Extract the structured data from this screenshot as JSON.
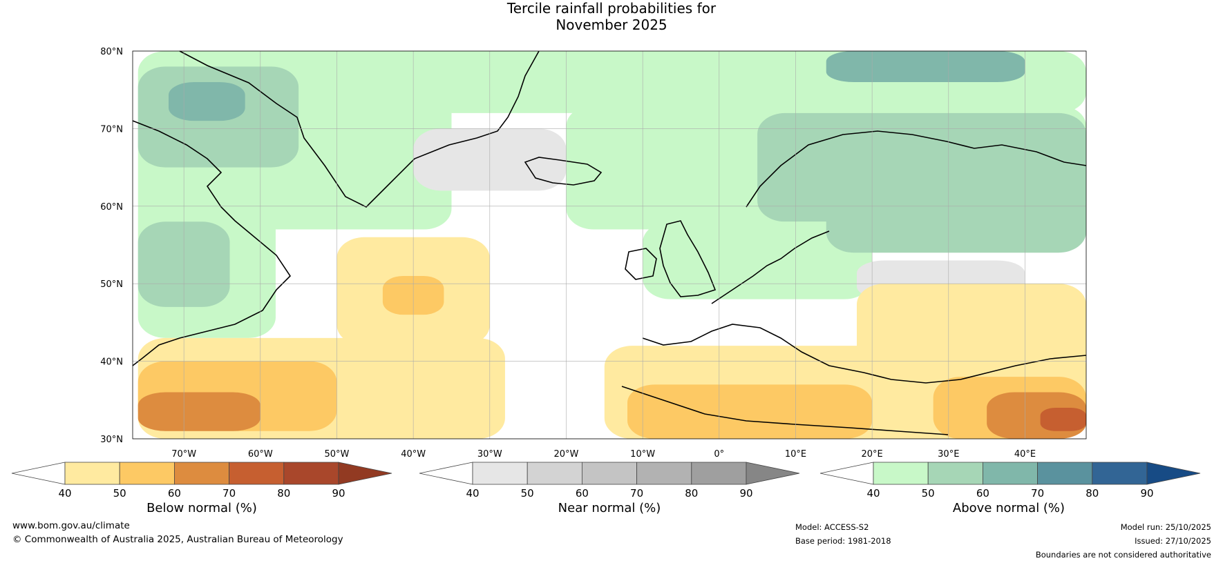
{
  "title": {
    "line1": "Tercile rainfall probabilities for",
    "line2": "November 2025"
  },
  "map": {
    "lat_ticks": [
      "80°N",
      "70°N",
      "60°N",
      "50°N",
      "40°N",
      "30°N"
    ],
    "lon_ticks": [
      "70°W",
      "60°W",
      "50°W",
      "40°W",
      "30°W",
      "20°W",
      "10°W",
      "0°",
      "10°E",
      "20°E",
      "30°E",
      "40°E"
    ],
    "lat_range": [
      30,
      80
    ],
    "lon_range": [
      -76.7,
      48.0
    ],
    "regions": [
      {
        "cat": "above",
        "level": 0,
        "lon": [
          -76,
          -35
        ],
        "lat": [
          57,
          80
        ]
      },
      {
        "cat": "above",
        "level": 1,
        "lon": [
          -76,
          -55
        ],
        "lat": [
          65,
          78
        ]
      },
      {
        "cat": "above",
        "level": 2,
        "lon": [
          -72,
          -62
        ],
        "lat": [
          71,
          76
        ]
      },
      {
        "cat": "above",
        "level": 0,
        "lon": [
          -76,
          -58
        ],
        "lat": [
          43,
          62
        ]
      },
      {
        "cat": "above",
        "level": 1,
        "lon": [
          -76,
          -64
        ],
        "lat": [
          47,
          58
        ]
      },
      {
        "cat": "above",
        "level": 0,
        "lon": [
          -45,
          48
        ],
        "lat": [
          72,
          80
        ]
      },
      {
        "cat": "above",
        "level": 0,
        "lon": [
          -20,
          48
        ],
        "lat": [
          57,
          73
        ]
      },
      {
        "cat": "above",
        "level": 1,
        "lon": [
          5,
          48
        ],
        "lat": [
          58,
          72
        ]
      },
      {
        "cat": "above",
        "level": 2,
        "lon": [
          14,
          40
        ],
        "lat": [
          76,
          80
        ]
      },
      {
        "cat": "above",
        "level": 0,
        "lon": [
          -10,
          20
        ],
        "lat": [
          48,
          58
        ]
      },
      {
        "cat": "above",
        "level": 1,
        "lon": [
          14,
          48
        ],
        "lat": [
          54,
          63
        ]
      },
      {
        "cat": "near",
        "level": 0,
        "lon": [
          -40,
          -20
        ],
        "lat": [
          62,
          70
        ]
      },
      {
        "cat": "near",
        "level": 0,
        "lon": [
          18,
          40
        ],
        "lat": [
          48,
          53
        ]
      },
      {
        "cat": "below",
        "level": 0,
        "lon": [
          -76,
          -28
        ],
        "lat": [
          30,
          43
        ]
      },
      {
        "cat": "below",
        "level": 1,
        "lon": [
          -76,
          -50
        ],
        "lat": [
          31,
          40
        ]
      },
      {
        "cat": "below",
        "level": 2,
        "lon": [
          -76,
          -60
        ],
        "lat": [
          31,
          36
        ]
      },
      {
        "cat": "below",
        "level": 0,
        "lon": [
          -50,
          -30
        ],
        "lat": [
          42,
          56
        ]
      },
      {
        "cat": "below",
        "level": 1,
        "lon": [
          -44,
          -36
        ],
        "lat": [
          46,
          51
        ]
      },
      {
        "cat": "below",
        "level": 0,
        "lon": [
          -15,
          48
        ],
        "lat": [
          30,
          42
        ]
      },
      {
        "cat": "below",
        "level": 1,
        "lon": [
          -12,
          20
        ],
        "lat": [
          30,
          37
        ]
      },
      {
        "cat": "below",
        "level": 0,
        "lon": [
          18,
          48
        ],
        "lat": [
          38,
          50
        ]
      },
      {
        "cat": "below",
        "level": 1,
        "lon": [
          28,
          48
        ],
        "lat": [
          30,
          38
        ]
      },
      {
        "cat": "below",
        "level": 2,
        "lon": [
          35,
          48
        ],
        "lat": [
          30,
          36
        ]
      },
      {
        "cat": "below",
        "level": 3,
        "lon": [
          42,
          48
        ],
        "lat": [
          31,
          34
        ]
      }
    ]
  },
  "colorbars": [
    {
      "name": "below",
      "label": "Below normal (%)",
      "ticks": [
        "40",
        "50",
        "60",
        "70",
        "80",
        "90"
      ],
      "colors": [
        "#ffffff",
        "#ffeaa0",
        "#fdc964",
        "#dd8c3f",
        "#c65f30",
        "#a9472b",
        "#923a22"
      ]
    },
    {
      "name": "near",
      "label": "Near normal (%)",
      "ticks": [
        "40",
        "50",
        "60",
        "70",
        "80",
        "90"
      ],
      "colors": [
        "#ffffff",
        "#e6e6e6",
        "#d3d3d3",
        "#c4c4c4",
        "#b2b2b2",
        "#9f9f9f",
        "#868686"
      ]
    },
    {
      "name": "above",
      "label": "Above normal (%)",
      "ticks": [
        "40",
        "50",
        "60",
        "70",
        "80",
        "90"
      ],
      "colors": [
        "#ffffff",
        "#c8f8c8",
        "#a6d6b6",
        "#80b7aa",
        "#5a929e",
        "#326595",
        "#174b85"
      ]
    }
  ],
  "footer": {
    "url": "www.bom.gov.au/climate",
    "copyright": "© Commonwealth of Australia 2025, Australian Bureau of Meteorology",
    "model": "Model: ACCESS-S2",
    "base_period": "Base period: 1981-2018",
    "model_run": "Model run: 25/10/2025",
    "issued": "Issued: 27/10/2025",
    "disclaimer": "Boundaries are not considered authoritative"
  }
}
